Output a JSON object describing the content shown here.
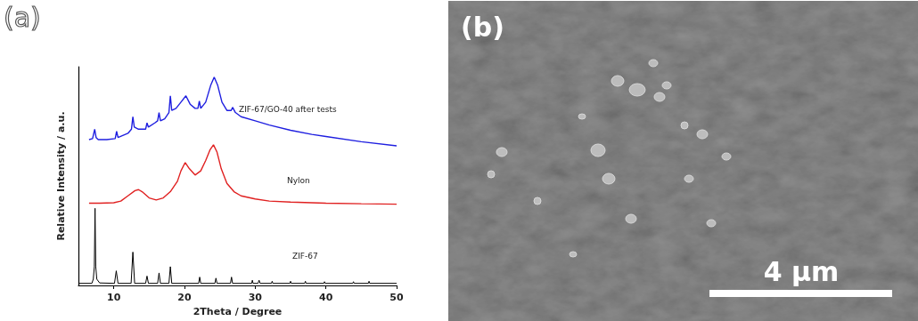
{
  "chart_data": {
    "type": "line",
    "xlabel": "2Theta / Degree",
    "ylabel": "Relative Intensity / a.u.",
    "xlim": [
      5,
      50
    ],
    "xticks": [
      10,
      20,
      30,
      40,
      50
    ],
    "ylim": [
      0,
      10.5
    ],
    "tick_labels": "x",
    "grid": false,
    "series": [
      {
        "name": "ZIF-67/GO-40 after tests",
        "color": "#1f1fe0",
        "x": [
          6.5,
          7.0,
          7.3,
          7.5,
          7.8,
          9,
          10.2,
          10.4,
          10.6,
          12,
          12.5,
          12.7,
          12.9,
          13.5,
          14.5,
          14.7,
          14.9,
          15.8,
          16.2,
          16.4,
          16.6,
          17.2,
          17.8,
          18.0,
          18.2,
          18.8,
          19.5,
          20.2,
          20.8,
          21.5,
          21.9,
          22.1,
          22.3,
          23,
          23.7,
          24.2,
          24.7,
          25.3,
          26,
          26.6,
          26.8,
          27.2,
          28,
          30,
          32,
          35,
          38,
          40,
          45,
          50
        ],
        "values": [
          7.0,
          7.05,
          7.5,
          7.1,
          7.0,
          7.0,
          7.05,
          7.4,
          7.1,
          7.3,
          7.5,
          8.1,
          7.6,
          7.5,
          7.5,
          7.8,
          7.6,
          7.8,
          7.9,
          8.3,
          7.9,
          8.0,
          8.3,
          9.1,
          8.4,
          8.5,
          8.8,
          9.1,
          8.7,
          8.5,
          8.5,
          8.85,
          8.5,
          8.8,
          9.6,
          10.0,
          9.6,
          8.8,
          8.4,
          8.4,
          8.55,
          8.3,
          8.1,
          7.9,
          7.7,
          7.45,
          7.25,
          7.15,
          6.9,
          6.7
        ]
      },
      {
        "name": "Nylon",
        "color": "#e02020",
        "x": [
          6.5,
          8,
          10,
          11,
          12,
          13,
          13.5,
          14,
          15,
          16,
          17,
          18,
          19,
          19.5,
          20.1,
          20.7,
          21.5,
          22.3,
          23,
          23.6,
          24.1,
          24.6,
          25.2,
          26,
          27,
          28,
          30,
          32,
          35,
          40,
          45,
          50
        ],
        "values": [
          3.95,
          3.95,
          3.97,
          4.05,
          4.3,
          4.55,
          4.6,
          4.5,
          4.2,
          4.1,
          4.2,
          4.5,
          5.0,
          5.5,
          5.9,
          5.6,
          5.3,
          5.5,
          6.0,
          6.5,
          6.75,
          6.4,
          5.6,
          4.9,
          4.5,
          4.3,
          4.15,
          4.05,
          4.0,
          3.95,
          3.92,
          3.9
        ]
      },
      {
        "name": "ZIF-67",
        "color": "#000000",
        "x": [
          5,
          6.9,
          7.1,
          7.25,
          7.35,
          7.45,
          7.6,
          8,
          10.1,
          10.35,
          10.6,
          12.45,
          12.7,
          12.95,
          14.5,
          14.7,
          14.9,
          16.2,
          16.4,
          16.6,
          17.8,
          18.0,
          18.2,
          22.0,
          22.15,
          22.3,
          24.3,
          24.45,
          24.6,
          26.5,
          26.65,
          26.8,
          29.5,
          29.6,
          29.7,
          30.4,
          30.55,
          30.7,
          32.3,
          32.4,
          32.5,
          34.9,
          35.0,
          35.1,
          37.0,
          37.1,
          37.2,
          39.7,
          39.8,
          39.9,
          43.8,
          43.9,
          44.0,
          46.0,
          46.1,
          46.2,
          50
        ],
        "values": [
          0.1,
          0.1,
          0.3,
          0.9,
          3.7,
          0.9,
          0.3,
          0.12,
          0.1,
          0.7,
          0.1,
          0.1,
          1.6,
          0.1,
          0.1,
          0.45,
          0.1,
          0.1,
          0.6,
          0.1,
          0.1,
          0.9,
          0.1,
          0.1,
          0.4,
          0.1,
          0.1,
          0.35,
          0.1,
          0.1,
          0.4,
          0.1,
          0.1,
          0.25,
          0.1,
          0.1,
          0.25,
          0.1,
          0.1,
          0.2,
          0.1,
          0.1,
          0.2,
          0.1,
          0.1,
          0.2,
          0.1,
          0.1,
          0.18,
          0.1,
          0.1,
          0.18,
          0.1,
          0.1,
          0.2,
          0.1,
          0.1
        ]
      }
    ]
  },
  "figure": {
    "panels": [
      {
        "label": "(a)"
      },
      {
        "label": "(b)",
        "scale_bar": "4 μm"
      }
    ]
  }
}
